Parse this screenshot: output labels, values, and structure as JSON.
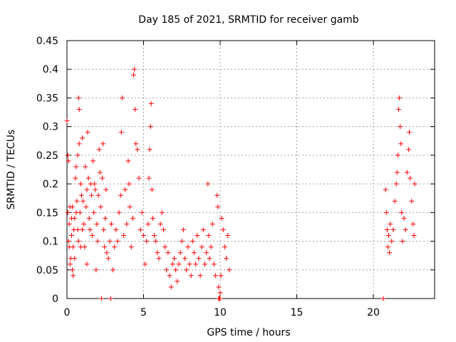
{
  "chart_data": {
    "type": "scatter",
    "title": "Day 185 of 2021, SRMTID for receiver gamb",
    "xlabel": "GPS time / hours",
    "ylabel": "SRMTID / TECUs",
    "xlim": [
      0,
      24
    ],
    "ylim": [
      0,
      0.45
    ],
    "grid": true,
    "marker": "+",
    "color": "#ff0000",
    "xticks": [
      0,
      5,
      10,
      15,
      20
    ],
    "xtick_labels": [
      "0",
      "5",
      "10",
      "15",
      "20"
    ],
    "yticks": [
      0,
      0.05,
      0.1,
      0.15,
      0.2,
      0.25,
      0.3,
      0.35,
      0.4,
      0.45
    ],
    "ytick_labels": [
      "0",
      "0.05",
      "0.1",
      "0.15",
      "0.2",
      "0.25",
      "0.3",
      "0.35",
      "0.4",
      "0.45"
    ],
    "series": [
      {
        "name": "SRMTID",
        "points": [
          [
            0.0,
            0.31
          ],
          [
            0.05,
            0.25
          ],
          [
            0.05,
            0.15
          ],
          [
            0.1,
            0.1
          ],
          [
            0.1,
            0.24
          ],
          [
            0.15,
            0.09
          ],
          [
            0.15,
            0.13
          ],
          [
            0.2,
            0.16
          ],
          [
            0.2,
            0.06
          ],
          [
            0.25,
            0.07
          ],
          [
            0.3,
            0.14
          ],
          [
            0.3,
            0.11
          ],
          [
            0.35,
            0.05
          ],
          [
            0.35,
            0.16
          ],
          [
            0.4,
            0.04
          ],
          [
            0.4,
            0.09
          ],
          [
            0.45,
            0.12
          ],
          [
            0.5,
            0.14
          ],
          [
            0.5,
            0.07
          ],
          [
            0.55,
            0.21
          ],
          [
            0.6,
            0.23
          ],
          [
            0.6,
            0.15
          ],
          [
            0.65,
            0.17
          ],
          [
            0.7,
            0.12
          ],
          [
            0.7,
            0.25
          ],
          [
            0.75,
            0.1
          ],
          [
            0.75,
            0.35
          ],
          [
            0.8,
            0.33
          ],
          [
            0.8,
            0.27
          ],
          [
            0.85,
            0.15
          ],
          [
            0.9,
            0.2
          ],
          [
            0.9,
            0.09
          ],
          [
            0.95,
            0.18
          ],
          [
            1.0,
            0.28
          ],
          [
            1.0,
            0.12
          ],
          [
            1.05,
            0.17
          ],
          [
            1.1,
            0.13
          ],
          [
            1.15,
            0.09
          ],
          [
            1.2,
            0.23
          ],
          [
            1.25,
            0.16
          ],
          [
            1.3,
            0.19
          ],
          [
            1.3,
            0.06
          ],
          [
            1.35,
            0.29
          ],
          [
            1.4,
            0.21
          ],
          [
            1.45,
            0.14
          ],
          [
            1.5,
            0.12
          ],
          [
            1.55,
            0.2
          ],
          [
            1.6,
            0.18
          ],
          [
            1.65,
            0.11
          ],
          [
            1.7,
            0.24
          ],
          [
            1.75,
            0.15
          ],
          [
            1.8,
            0.2
          ],
          [
            1.85,
            0.19
          ],
          [
            1.9,
            0.05
          ],
          [
            1.95,
            0.13
          ],
          [
            2.0,
            0.1
          ],
          [
            2.05,
            0.18
          ],
          [
            2.1,
            0.26
          ],
          [
            2.15,
            0.22
          ],
          [
            2.2,
            0.16
          ],
          [
            2.3,
            0.21
          ],
          [
            2.35,
            0.27
          ],
          [
            2.4,
            0.12
          ],
          [
            2.45,
            0.09
          ],
          [
            2.5,
            0.14
          ],
          [
            2.55,
            0.19
          ],
          [
            2.6,
            0.08
          ],
          [
            2.7,
            0.07
          ],
          [
            2.8,
            0.1
          ],
          [
            2.9,
            0.13
          ],
          [
            3.0,
            0.05
          ],
          [
            3.1,
            0.09
          ],
          [
            3.2,
            0.12
          ],
          [
            3.3,
            0.1
          ],
          [
            3.4,
            0.15
          ],
          [
            3.5,
            0.18
          ],
          [
            3.55,
            0.29
          ],
          [
            3.6,
            0.35
          ],
          [
            3.7,
            0.11
          ],
          [
            3.8,
            0.19
          ],
          [
            3.9,
            0.13
          ],
          [
            4.0,
            0.24
          ],
          [
            4.05,
            0.2
          ],
          [
            4.1,
            0.16
          ],
          [
            4.2,
            0.09
          ],
          [
            4.3,
            0.14
          ],
          [
            4.35,
            0.39
          ],
          [
            4.4,
            0.4
          ],
          [
            4.45,
            0.33
          ],
          [
            4.5,
            0.27
          ],
          [
            4.6,
            0.26
          ],
          [
            4.7,
            0.21
          ],
          [
            4.8,
            0.12
          ],
          [
            4.9,
            0.15
          ],
          [
            5.0,
            0.11
          ],
          [
            5.1,
            0.06
          ],
          [
            5.2,
            0.1
          ],
          [
            5.3,
            0.13
          ],
          [
            5.35,
            0.21
          ],
          [
            5.4,
            0.26
          ],
          [
            5.45,
            0.3
          ],
          [
            5.5,
            0.34
          ],
          [
            5.55,
            0.19
          ],
          [
            5.6,
            0.14
          ],
          [
            5.7,
            0.11
          ],
          [
            5.8,
            0.1
          ],
          [
            5.9,
            0.08
          ],
          [
            6.0,
            0.07
          ],
          [
            6.1,
            0.13
          ],
          [
            6.2,
            0.15
          ],
          [
            6.3,
            0.12
          ],
          [
            6.4,
            0.09
          ],
          [
            6.5,
            0.05
          ],
          [
            6.6,
            0.08
          ],
          [
            6.7,
            0.04
          ],
          [
            6.8,
            0.02
          ],
          [
            6.9,
            0.06
          ],
          [
            7.0,
            0.07
          ],
          [
            7.1,
            0.05
          ],
          [
            7.2,
            0.03
          ],
          [
            7.3,
            0.06
          ],
          [
            7.4,
            0.08
          ],
          [
            7.5,
            0.1
          ],
          [
            7.6,
            0.12
          ],
          [
            7.7,
            0.07
          ],
          [
            7.8,
            0.05
          ],
          [
            7.9,
            0.09
          ],
          [
            8.0,
            0.06
          ],
          [
            8.1,
            0.04
          ],
          [
            8.2,
            0.1
          ],
          [
            8.3,
            0.08
          ],
          [
            8.4,
            0.06
          ],
          [
            8.5,
            0.11
          ],
          [
            8.6,
            0.07
          ],
          [
            8.7,
            0.04
          ],
          [
            8.8,
            0.09
          ],
          [
            8.9,
            0.12
          ],
          [
            9.0,
            0.06
          ],
          [
            9.1,
            0.08
          ],
          [
            9.2,
            0.2
          ],
          [
            9.25,
            0.11
          ],
          [
            9.3,
            0.07
          ],
          [
            9.4,
            0.09
          ],
          [
            9.5,
            0.13
          ],
          [
            9.6,
            0.06
          ],
          [
            9.7,
            0.04
          ],
          [
            9.8,
            0.18
          ],
          [
            9.85,
            0.16
          ],
          [
            9.9,
            0.02
          ],
          [
            9.95,
            0.0
          ],
          [
            10.0,
            0.01
          ],
          [
            10.05,
            0.04
          ],
          [
            10.1,
            0.14
          ],
          [
            10.2,
            0.12
          ],
          [
            10.3,
            0.09
          ],
          [
            10.4,
            0.07
          ],
          [
            10.5,
            0.11
          ],
          [
            10.6,
            0.05
          ],
          [
            20.8,
            0.19
          ],
          [
            20.85,
            0.15
          ],
          [
            20.9,
            0.12
          ],
          [
            20.95,
            0.09
          ],
          [
            21.0,
            0.11
          ],
          [
            21.05,
            0.08
          ],
          [
            21.1,
            0.13
          ],
          [
            21.2,
            0.1
          ],
          [
            21.3,
            0.12
          ],
          [
            21.4,
            0.17
          ],
          [
            21.5,
            0.2
          ],
          [
            21.55,
            0.22
          ],
          [
            21.6,
            0.25
          ],
          [
            21.65,
            0.33
          ],
          [
            21.7,
            0.35
          ],
          [
            21.75,
            0.3
          ],
          [
            21.8,
            0.27
          ],
          [
            21.85,
            0.15
          ],
          [
            21.9,
            0.1
          ],
          [
            22.0,
            0.14
          ],
          [
            22.1,
            0.12
          ],
          [
            22.2,
            0.22
          ],
          [
            22.3,
            0.26
          ],
          [
            22.35,
            0.29
          ],
          [
            22.4,
            0.21
          ],
          [
            22.5,
            0.17
          ],
          [
            22.6,
            0.13
          ],
          [
            22.65,
            0.11
          ],
          [
            22.7,
            0.2
          ]
        ]
      },
      {
        "name": "zero-markers",
        "points": [
          [
            2.25,
            0.0
          ],
          [
            2.85,
            0.0
          ],
          [
            9.9,
            0.0
          ],
          [
            10.0,
            0.0
          ],
          [
            20.65,
            0.0
          ]
        ]
      }
    ]
  }
}
